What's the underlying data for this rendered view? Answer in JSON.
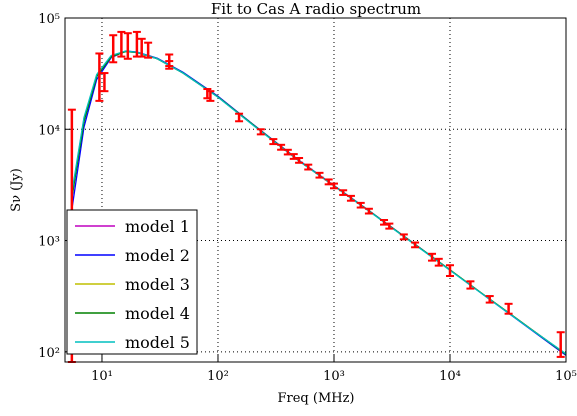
{
  "chart_data": {
    "type": "line",
    "title": "Fit to Cas A radio spectrum",
    "xlabel": "Freq (MHz)",
    "ylabel": "Sν (Jy)",
    "xscale": "log",
    "yscale": "log",
    "xlim": [
      4.8,
      100000
    ],
    "ylim": [
      81,
      100000
    ],
    "xticks": [
      {
        "value": 10,
        "label": "10¹"
      },
      {
        "value": 100,
        "label": "10²"
      },
      {
        "value": 1000,
        "label": "10³"
      },
      {
        "value": 10000,
        "label": "10⁴"
      },
      {
        "value": 100000,
        "label": "10⁵"
      }
    ],
    "yticks": [
      {
        "value": 100,
        "label": "10²"
      },
      {
        "value": 1000,
        "label": "10³"
      },
      {
        "value": 10000,
        "label": "10⁴"
      },
      {
        "value": 100000,
        "label": "10⁵"
      }
    ],
    "grid": true,
    "legend": "lower left",
    "x": [
      5.5,
      7,
      9,
      12,
      16,
      20,
      30,
      50,
      100,
      200,
      500,
      1000,
      2000,
      5000,
      10000,
      20000,
      50000,
      100000
    ],
    "series": [
      {
        "name": "model 1",
        "color": "#bf00bf",
        "values": [
          2600,
          12500,
          30500,
          45500,
          50000,
          49000,
          43000,
          32000,
          19500,
          11000,
          5200,
          3100,
          1850,
          920,
          545,
          320,
          160,
          95
        ]
      },
      {
        "name": "model 2",
        "color": "#0000ff",
        "values": [
          1900,
          10500,
          28000,
          44000,
          50500,
          49500,
          43500,
          32500,
          19800,
          11100,
          5250,
          3120,
          1860,
          925,
          545,
          318,
          158,
          93
        ]
      },
      {
        "name": "model 3",
        "color": "#bfbf00",
        "values": [
          2500,
          12000,
          30000,
          45000,
          50000,
          49000,
          43000,
          32000,
          19500,
          11000,
          5200,
          3100,
          1850,
          920,
          545,
          320,
          160,
          95
        ]
      },
      {
        "name": "model 4",
        "color": "#008000",
        "values": [
          2400,
          11800,
          29800,
          45000,
          50000,
          49000,
          43000,
          32000,
          19500,
          11000,
          5200,
          3100,
          1850,
          920,
          545,
          320,
          160,
          95
        ]
      },
      {
        "name": "model 5",
        "color": "#00bfbf",
        "values": [
          2700,
          12800,
          31000,
          46000,
          50500,
          49200,
          43000,
          32000,
          19400,
          10900,
          5180,
          3090,
          1840,
          915,
          540,
          318,
          159,
          96
        ]
      }
    ],
    "points": {
      "color": "#ff0000",
      "x": [
        5.5,
        9.5,
        10.5,
        12.5,
        14.7,
        16.7,
        20,
        22,
        25,
        38,
        38,
        81,
        86,
        152,
        234,
        300,
        350,
        400,
        450,
        500,
        600,
        750,
        900,
        1000,
        1200,
        1400,
        1700,
        2000,
        2700,
        3000,
        4000,
        5000,
        7000,
        8000,
        10000,
        15000,
        22000,
        32000,
        90000
      ],
      "values": [
        5000,
        33000,
        27000,
        55000,
        60000,
        58000,
        60000,
        55000,
        52000,
        42000,
        38000,
        21000,
        20000,
        12800,
        9500,
        7760,
        6900,
        6240,
        5700,
        5260,
        4580,
        3870,
        3370,
        3100,
        2700,
        2400,
        2080,
        1840,
        1460,
        1350,
        1080,
        915,
        710,
        640,
        540,
        400,
        297,
        245,
        120
      ],
      "errors": [
        10000,
        15000,
        5000,
        15000,
        15000,
        15000,
        15000,
        10000,
        8000,
        5000,
        3000,
        2000,
        2000,
        1000,
        500,
        400,
        350,
        300,
        280,
        260,
        230,
        190,
        170,
        150,
        130,
        120,
        100,
        90,
        70,
        70,
        55,
        45,
        50,
        45,
        60,
        30,
        20,
        25,
        30
      ]
    }
  }
}
